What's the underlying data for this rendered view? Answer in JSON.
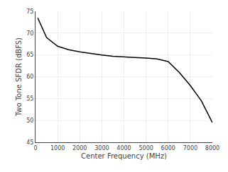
{
  "chart_data": {
    "type": "line",
    "x": [
      100,
      500,
      1000,
      1500,
      2000,
      2500,
      3000,
      3500,
      4000,
      4500,
      5000,
      5500,
      6000,
      6500,
      7000,
      7500,
      8000
    ],
    "values": [
      73.5,
      69.0,
      67.0,
      66.2,
      65.7,
      65.3,
      65.0,
      64.7,
      64.5,
      64.4,
      64.3,
      64.1,
      63.5,
      61.0,
      58.0,
      54.5,
      49.5
    ],
    "xlabel": "Center Frequency (MHz)",
    "ylabel": "Two Tone SFDR (dBFS)",
    "xlim": [
      0,
      8000
    ],
    "ylim": [
      45,
      75
    ],
    "xticks": [
      0,
      1000,
      2000,
      3000,
      4000,
      5000,
      6000,
      7000,
      8000
    ],
    "yticks": [
      45,
      50,
      55,
      60,
      65,
      70,
      75
    ],
    "color": "#000000",
    "grid": true
  }
}
